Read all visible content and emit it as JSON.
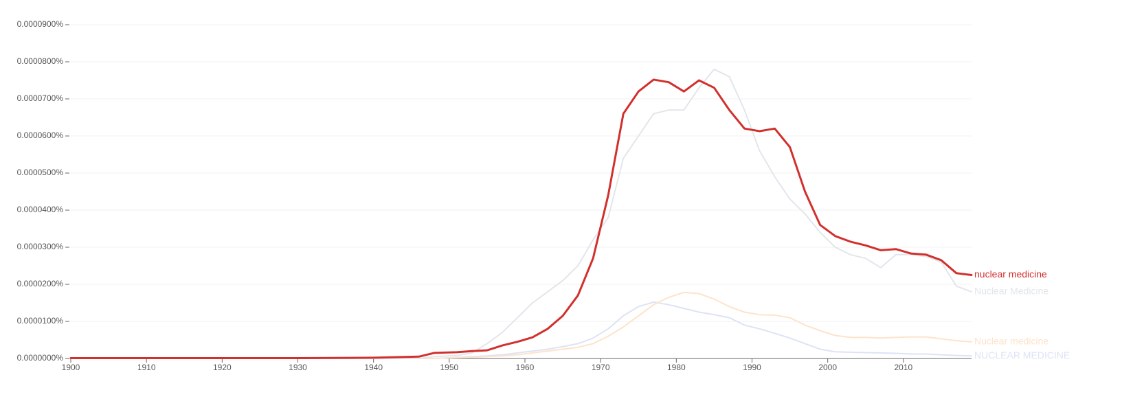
{
  "chart_data": {
    "type": "line",
    "x": [
      1900,
      1910,
      1920,
      1930,
      1940,
      1946,
      1948,
      1951,
      1953,
      1955,
      1957,
      1959,
      1961,
      1963,
      1965,
      1967,
      1969,
      1971,
      1973,
      1975,
      1977,
      1979,
      1981,
      1983,
      1985,
      1987,
      1989,
      1991,
      1993,
      1995,
      1997,
      1999,
      2001,
      2003,
      2005,
      2007,
      2009,
      2011,
      2013,
      2015,
      2017,
      2019
    ],
    "series": [
      {
        "name": "nuclear medicine",
        "color": "#d2302c",
        "values": [
          1e-07,
          1e-07,
          1e-07,
          1e-07,
          2e-07,
          5e-07,
          1.5e-06,
          1.7e-06,
          2e-06,
          2.2e-06,
          3.5e-06,
          4.5e-06,
          5.7e-06,
          8e-06,
          1.15e-05,
          1.7e-05,
          2.7e-05,
          4.4e-05,
          6.6e-05,
          7.2e-05,
          7.52e-05,
          7.45e-05,
          7.2e-05,
          7.5e-05,
          7.3e-05,
          6.7e-05,
          6.2e-05,
          6.13e-05,
          6.2e-05,
          5.7e-05,
          4.5e-05,
          3.6e-05,
          3.3e-05,
          3.15e-05,
          3.05e-05,
          2.92e-05,
          2.95e-05,
          2.83e-05,
          2.8e-05,
          2.65e-05,
          2.3e-05,
          2.25e-05
        ]
      },
      {
        "name": "Nuclear Medicine",
        "color": "#e2e6ea",
        "values": [
          0,
          0,
          0,
          0,
          0,
          0,
          5e-07,
          8e-07,
          1.5e-06,
          4e-06,
          7e-06,
          1.1e-05,
          1.5e-05,
          1.8e-05,
          2.1e-05,
          2.5e-05,
          3.2e-05,
          3.8e-05,
          5.4e-05,
          6e-05,
          6.6e-05,
          6.7e-05,
          6.7e-05,
          7.3e-05,
          7.8e-05,
          7.6e-05,
          6.7e-05,
          5.6e-05,
          4.9e-05,
          4.3e-05,
          3.9e-05,
          3.4e-05,
          3e-05,
          2.8e-05,
          2.7e-05,
          2.45e-05,
          2.8e-05,
          2.8e-05,
          2.75e-05,
          2.6e-05,
          1.95e-05,
          1.8e-05
        ]
      },
      {
        "name": "Nuclear medicine",
        "color": "#fde3cb",
        "values": [
          0,
          0,
          0,
          0,
          0,
          0,
          0,
          2e-07,
          3e-07,
          5e-07,
          7e-07,
          1e-06,
          1.5e-06,
          2e-06,
          2.5e-06,
          3e-06,
          4e-06,
          6e-06,
          8.5e-06,
          1.15e-05,
          1.45e-05,
          1.65e-05,
          1.78e-05,
          1.75e-05,
          1.6e-05,
          1.4e-05,
          1.25e-05,
          1.18e-05,
          1.17e-05,
          1.1e-05,
          9e-06,
          7.5e-06,
          6.2e-06,
          5.7e-06,
          5.7e-06,
          5.5e-06,
          5.7e-06,
          5.8e-06,
          5.8e-06,
          5.3e-06,
          4.8e-06,
          4.5e-06
        ]
      },
      {
        "name": "NUCLEAR MEDICINE",
        "color": "#dde3f5",
        "values": [
          0,
          0,
          0,
          0,
          0,
          0,
          0,
          3e-07,
          5e-07,
          7e-07,
          1e-06,
          1.5e-06,
          2e-06,
          2.5e-06,
          3.2e-06,
          4e-06,
          5.5e-06,
          8e-06,
          1.15e-05,
          1.4e-05,
          1.52e-05,
          1.45e-05,
          1.35e-05,
          1.25e-05,
          1.18e-05,
          1.1e-05,
          9e-06,
          8e-06,
          6.8e-06,
          5.5e-06,
          4e-06,
          2.5e-06,
          1.8e-06,
          1.7e-06,
          1.6e-06,
          1.5e-06,
          1.4e-06,
          1.2e-06,
          1.2e-06,
          1e-06,
          8e-07,
          7e-07
        ]
      }
    ],
    "xlim": [
      1900,
      2019
    ],
    "xticks": [
      1900,
      1910,
      1920,
      1930,
      1940,
      1950,
      1960,
      1970,
      1980,
      1990,
      2000,
      2010
    ],
    "ylim": [
      0,
      9e-05
    ],
    "yticks": [
      {
        "value": 0,
        "label": "0.0000000%"
      },
      {
        "value": 1e-05,
        "label": "0.0000100%"
      },
      {
        "value": 2e-05,
        "label": "0.0000200%"
      },
      {
        "value": 3e-05,
        "label": "0.0000300%"
      },
      {
        "value": 4e-05,
        "label": "0.0000400%"
      },
      {
        "value": 5e-05,
        "label": "0.0000500%"
      },
      {
        "value": 6e-05,
        "label": "0.0000600%"
      },
      {
        "value": 7e-05,
        "label": "0.0000700%"
      },
      {
        "value": 8e-05,
        "label": "0.0000800%"
      },
      {
        "value": 9e-05,
        "label": "0.0000900%"
      }
    ],
    "grid": true
  }
}
